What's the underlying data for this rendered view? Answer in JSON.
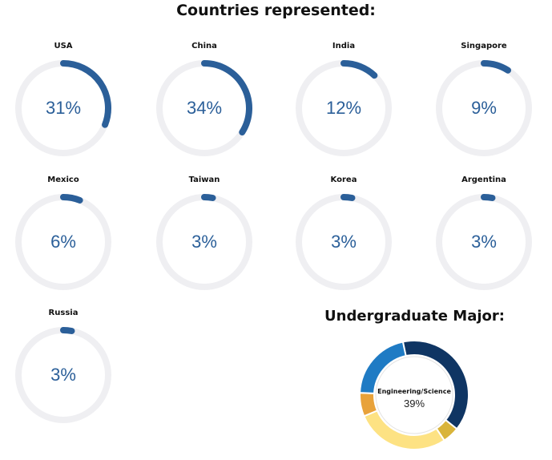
{
  "header": {
    "title": "Countries represented:"
  },
  "chart_data": [
    {
      "type": "pie",
      "title": "Countries represented:",
      "style": "progress-ring",
      "accent_color": "#2b5f99",
      "track_color": "#efeff2",
      "series": [
        {
          "name": "USA",
          "value": 31,
          "label": "31%"
        },
        {
          "name": "China",
          "value": 34,
          "label": "34%"
        },
        {
          "name": "India",
          "value": 12,
          "label": "12%"
        },
        {
          "name": "Singapore",
          "value": 9,
          "label": "9%"
        },
        {
          "name": "Mexico",
          "value": 6,
          "label": "6%"
        },
        {
          "name": "Taiwan",
          "value": 3,
          "label": "3%"
        },
        {
          "name": "Korea",
          "value": 3,
          "label": "3%"
        },
        {
          "name": "Argentina",
          "value": 3,
          "label": "3%"
        },
        {
          "name": "Russia",
          "value": 3,
          "label": "3%"
        }
      ]
    },
    {
      "type": "pie",
      "style": "donut",
      "title": "Undergraduate Major:",
      "highlight": {
        "label": "Engineering/Science",
        "value": 39,
        "value_label": "39%"
      },
      "slices": [
        {
          "value": 39,
          "color": "#0f3563"
        },
        {
          "value": 5,
          "color": "#d9b43a"
        },
        {
          "value": 28,
          "color": "#fde283"
        },
        {
          "value": 7,
          "color": "#e8a23a"
        },
        {
          "value": 21,
          "color": "#1f7bc4"
        }
      ]
    }
  ]
}
